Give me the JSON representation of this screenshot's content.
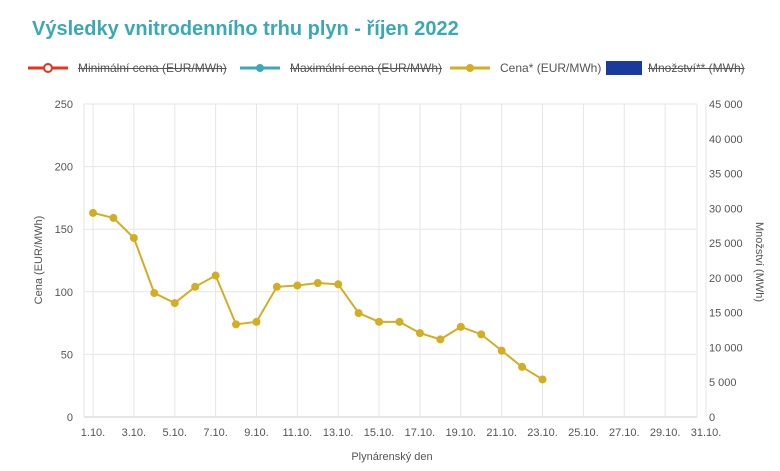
{
  "chart_data": {
    "type": "line",
    "title": "Výsledky vnitrodenního trhu plyn - říjen 2022",
    "xlabel": "Plynárenský den",
    "ylabel": "Cena (EUR/MWh)",
    "y2label": "Množství (MWh)",
    "x_ticks": [
      "1.10.",
      "3.10.",
      "5.10.",
      "7.10.",
      "9.10.",
      "11.10.",
      "13.10.",
      "15.10.",
      "17.10.",
      "19.10.",
      "21.10.",
      "23.10.",
      "25.10.",
      "27.10.",
      "29.10.",
      "31.10."
    ],
    "y_ticks": [
      "0",
      "50",
      "100",
      "150",
      "200",
      "250"
    ],
    "y2_ticks": [
      "0",
      "5 000",
      "10 000",
      "15 000",
      "20 000",
      "25 000",
      "30 000",
      "35 000",
      "40 000",
      "45 000"
    ],
    "ylim": [
      0,
      250
    ],
    "y2lim": [
      0,
      45000
    ],
    "xlim": [
      1,
      31
    ],
    "grid": true,
    "legend_position": "top-left",
    "legend": [
      {
        "label": "Minimální cena (EUR/MWh)",
        "color": "#e8331c",
        "style": "line-hollow-marker",
        "hidden": true
      },
      {
        "label": "Maximální cena (EUR/MWh)",
        "color": "#3aa9b5",
        "style": "line-marker",
        "hidden": true
      },
      {
        "label": "Cena* (EUR/MWh)",
        "color": "#d4ad22",
        "style": "line-marker",
        "hidden": false
      },
      {
        "label": "Množství** (MWh)",
        "color": "#1a3a9c",
        "style": "bar",
        "hidden": true
      }
    ],
    "series": [
      {
        "name": "Cena* (EUR/MWh)",
        "color": "#d4ad22",
        "x": [
          1,
          2,
          3,
          4,
          5,
          6,
          7,
          8,
          9,
          10,
          11,
          12,
          13,
          14,
          15,
          16,
          17,
          18,
          19,
          20,
          21,
          22,
          23
        ],
        "values": [
          163,
          159,
          143,
          99,
          91,
          104,
          113,
          74,
          76,
          104,
          105,
          107,
          106,
          83,
          76,
          76,
          67,
          62,
          72,
          66,
          53,
          40,
          30
        ]
      }
    ]
  }
}
